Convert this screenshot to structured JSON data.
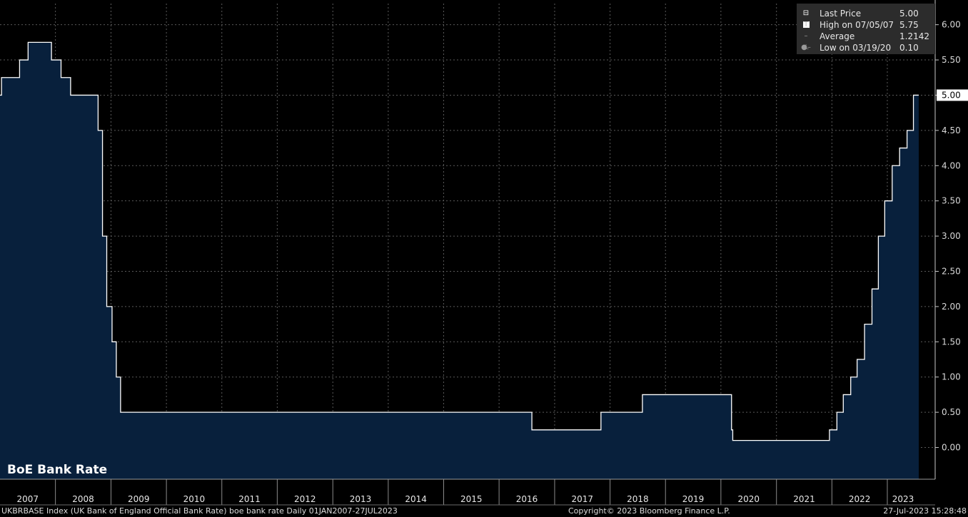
{
  "chart_data": {
    "type": "area",
    "title": "BoE Bank Rate",
    "x_range": [
      "2007-01-01",
      "2023-07-27"
    ],
    "ylim": [
      -0.45,
      6.3
    ],
    "y_ticks": [
      "6.00",
      "5.50",
      "5.00",
      "4.50",
      "4.00",
      "3.50",
      "3.00",
      "2.50",
      "2.00",
      "1.50",
      "1.00",
      "0.50",
      "0.00"
    ],
    "x_labels": [
      "2007",
      "2008",
      "2009",
      "2010",
      "2011",
      "2012",
      "2013",
      "2014",
      "2015",
      "2016",
      "2017",
      "2018",
      "2019",
      "2020",
      "2021",
      "2022",
      "2023"
    ],
    "grid": true,
    "line_color": "#ffffff",
    "fill_color": "#08203c",
    "background": "#000000",
    "series": [
      {
        "name": "Last Price",
        "steps": [
          [
            "2007-01-01",
            5.0
          ],
          [
            "2007-01-11",
            5.25
          ],
          [
            "2007-05-10",
            5.5
          ],
          [
            "2007-07-05",
            5.75
          ],
          [
            "2007-12-06",
            5.5
          ],
          [
            "2008-02-07",
            5.25
          ],
          [
            "2008-04-10",
            5.0
          ],
          [
            "2008-10-08",
            4.5
          ],
          [
            "2008-11-06",
            3.0
          ],
          [
            "2008-12-04",
            2.0
          ],
          [
            "2009-01-08",
            1.5
          ],
          [
            "2009-02-05",
            1.0
          ],
          [
            "2009-03-05",
            0.5
          ],
          [
            "2016-08-04",
            0.25
          ],
          [
            "2017-11-02",
            0.5
          ],
          [
            "2018-08-02",
            0.75
          ],
          [
            "2020-03-11",
            0.25
          ],
          [
            "2020-03-19",
            0.1
          ],
          [
            "2021-12-16",
            0.25
          ],
          [
            "2022-02-03",
            0.5
          ],
          [
            "2022-03-17",
            0.75
          ],
          [
            "2022-05-05",
            1.0
          ],
          [
            "2022-06-16",
            1.25
          ],
          [
            "2022-08-04",
            1.75
          ],
          [
            "2022-09-22",
            2.25
          ],
          [
            "2022-11-03",
            3.0
          ],
          [
            "2022-12-15",
            3.5
          ],
          [
            "2023-02-02",
            4.0
          ],
          [
            "2023-03-23",
            4.25
          ],
          [
            "2023-05-11",
            4.5
          ],
          [
            "2023-06-22",
            5.0
          ],
          [
            "2023-07-27",
            5.0
          ]
        ]
      }
    ],
    "last_value_label": "5.00"
  },
  "legend": {
    "rows": [
      {
        "icon": "last-price-box-icon",
        "label": "Last Price",
        "value": "5.00"
      },
      {
        "icon": "high-marker-icon",
        "label": "High on 07/05/07",
        "value": "5.75"
      },
      {
        "icon": "average-marker-icon",
        "label": "Average",
        "value": "1.2142"
      },
      {
        "icon": "low-marker-icon",
        "label": "Low on 03/19/20",
        "value": "0.10"
      }
    ]
  },
  "footer": {
    "description": "UKBRBASE Index (UK Bank of England Official Bank Rate) boe bank rate  Daily 01JAN2007-27JUL2023",
    "copyright": "Copyright© 2023 Bloomberg Finance L.P.",
    "timestamp": "27-Jul-2023 15:28:48"
  }
}
